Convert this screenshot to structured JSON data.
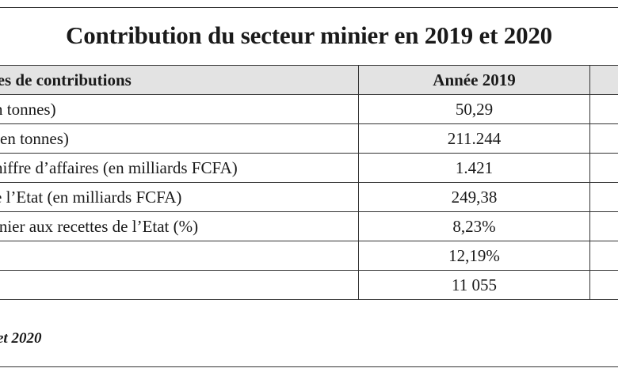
{
  "title": "Contribution du secteur minier en 2019 et 2020",
  "table": {
    "headers": [
      "pes de contributions",
      "Année 2019",
      ""
    ],
    "rows": [
      {
        "label": "n tonnes)",
        "y2019": "50,29"
      },
      {
        "label": "(en tonnes)",
        "y2019": "211.244"
      },
      {
        "label": "hiffre d’affaires (en milliards FCFA)",
        "y2019": "1.421"
      },
      {
        "label": "e l’Etat (en milliards FCFA)",
        "y2019": "249,38"
      },
      {
        "label": "inier aux recettes de l’Etat  (%)",
        "y2019": "8,23%"
      },
      {
        "label": "",
        "y2019": "12,19%"
      },
      {
        "label": "",
        "y2019": "11 055"
      }
    ]
  },
  "source": "et 2020",
  "colors": {
    "header_bg": "#e3e3e3",
    "border": "#333333"
  }
}
